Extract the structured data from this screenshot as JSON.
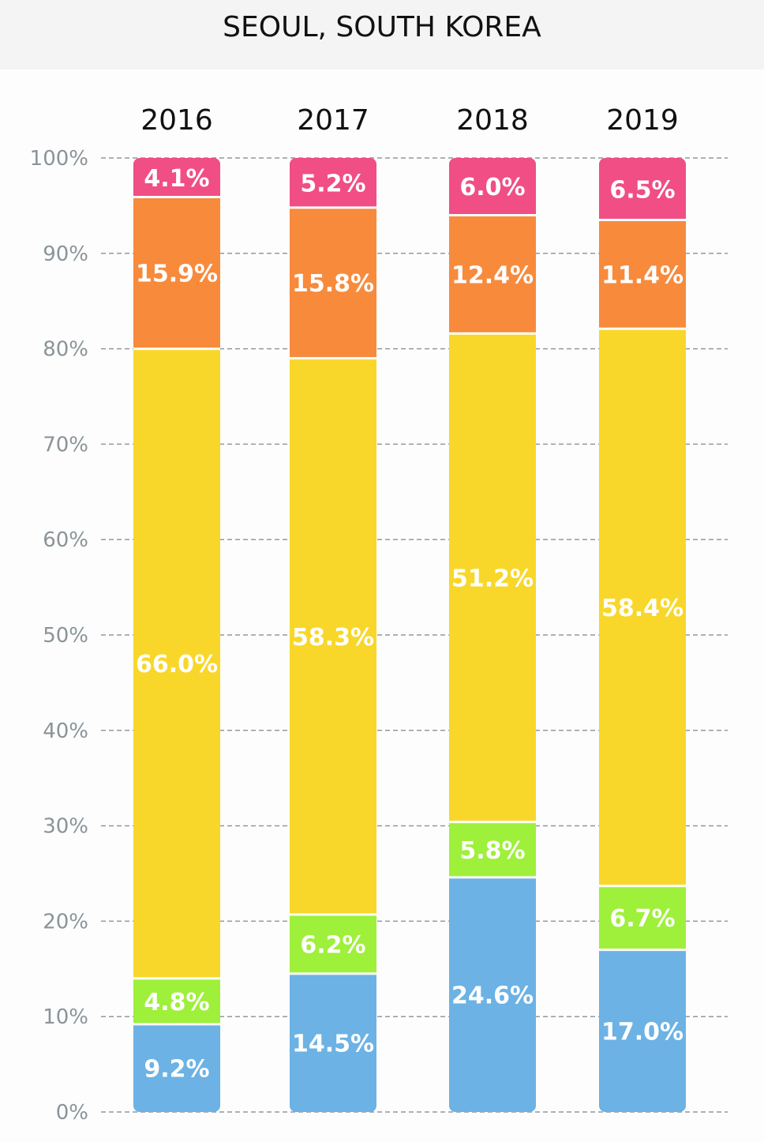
{
  "chart_data": {
    "type": "bar",
    "stacked": true,
    "title": "SEOUL, SOUTH KOREA",
    "categories": [
      "2016",
      "2017",
      "2018",
      "2019"
    ],
    "ylim": [
      0,
      100
    ],
    "yticks": [
      "0%",
      "10%",
      "20%",
      "30%",
      "40%",
      "50%",
      "60%",
      "70%",
      "80%",
      "90%",
      "100%"
    ],
    "grid": true,
    "series": [
      {
        "color": "#6cb2e4",
        "values": [
          9.2,
          14.5,
          24.6,
          17.0
        ],
        "labels": [
          "9.2%",
          "14.5%",
          "24.6%",
          "17.0%"
        ]
      },
      {
        "color": "#9ef03a",
        "values": [
          4.8,
          6.2,
          5.8,
          6.7
        ],
        "labels": [
          "4.8%",
          "6.2%",
          "5.8%",
          "6.7%"
        ]
      },
      {
        "color": "#f8d72a",
        "values": [
          66.0,
          58.3,
          51.2,
          58.4
        ],
        "labels": [
          "66.0%",
          "58.3%",
          "51.2%",
          "58.4%"
        ]
      },
      {
        "color": "#f88a3c",
        "values": [
          15.9,
          15.8,
          12.4,
          11.4
        ],
        "labels": [
          "15.9%",
          "15.8%",
          "12.4%",
          "11.4%"
        ]
      },
      {
        "color": "#f04e84",
        "values": [
          4.1,
          5.2,
          6.0,
          6.5
        ],
        "labels": [
          "4.1%",
          "5.2%",
          "6.0%",
          "6.5%"
        ]
      }
    ]
  }
}
